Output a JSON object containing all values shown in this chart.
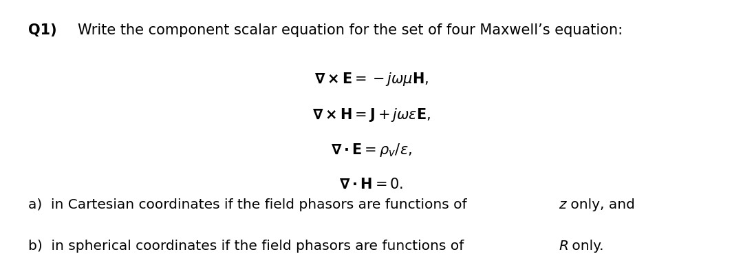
{
  "background_color": "#ffffff",
  "fig_width": 10.8,
  "fig_height": 3.82,
  "dpi": 100,
  "title_bold": "Q1)",
  "title_rest": " Write the component scalar equation for the set of four Maxwell’s equation:",
  "eq1": "$\\mathbf{\\nabla \\times E} = -j\\omega\\mu\\mathbf{H},$",
  "eq2": "$\\mathbf{\\nabla \\times H} = \\mathbf{J} + j\\omega\\epsilon\\mathbf{E},$",
  "eq3": "$\\mathbf{\\nabla \\cdot E} = \\rho_v/\\epsilon,$",
  "eq4": "$\\mathbf{\\nabla \\cdot H} = 0.$",
  "part_a_pre": "a)  in Cartesian coordinates if the field phasors are functions of ",
  "part_a_italic": "z",
  "part_a_post": " only, and",
  "part_b_pre": "b)  in spherical coordinates if the field phasors are functions of ",
  "part_b_italic": "R",
  "part_b_post": " only.",
  "title_fontsize": 15,
  "eq_fontsize": 15,
  "parts_fontsize": 14.5
}
